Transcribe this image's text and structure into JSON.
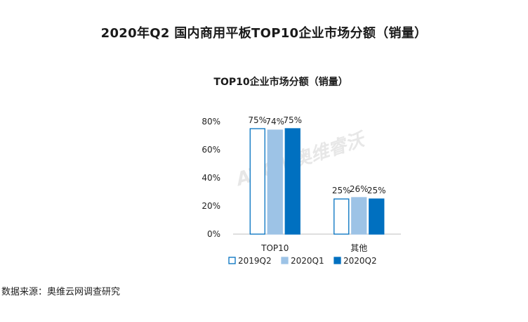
{
  "page": {
    "title": "2020年Q2 国内商用平板TOP10企业市场分额（销量）",
    "source": "数据来源：奥维云网调查研究"
  },
  "watermark": {
    "text": "AVC | 奥维睿沃"
  },
  "chart_data": {
    "type": "bar",
    "title": "TOP10企业市场分额（销量）",
    "categories": [
      "TOP10",
      "其他"
    ],
    "series": [
      {
        "name": "2019Q2",
        "values": [
          75,
          25
        ],
        "labels": [
          "75%",
          "25%"
        ],
        "fill": "#ffffff",
        "stroke": "#0070c0"
      },
      {
        "name": "2020Q1",
        "values": [
          74,
          26
        ],
        "labels": [
          "74%",
          "26%"
        ],
        "fill": "#9dc3e6",
        "stroke": "#9dc3e6"
      },
      {
        "name": "2020Q2",
        "values": [
          75,
          25
        ],
        "labels": [
          "75%",
          "25%"
        ],
        "fill": "#0070c0",
        "stroke": "#0070c0"
      }
    ],
    "yticks": [
      0,
      20,
      40,
      60,
      80
    ],
    "ytick_labels": [
      "0%",
      "20%",
      "40%",
      "60%",
      "80%"
    ],
    "ylim": [
      0,
      80
    ],
    "grid": false,
    "legend_position": "bottom"
  }
}
